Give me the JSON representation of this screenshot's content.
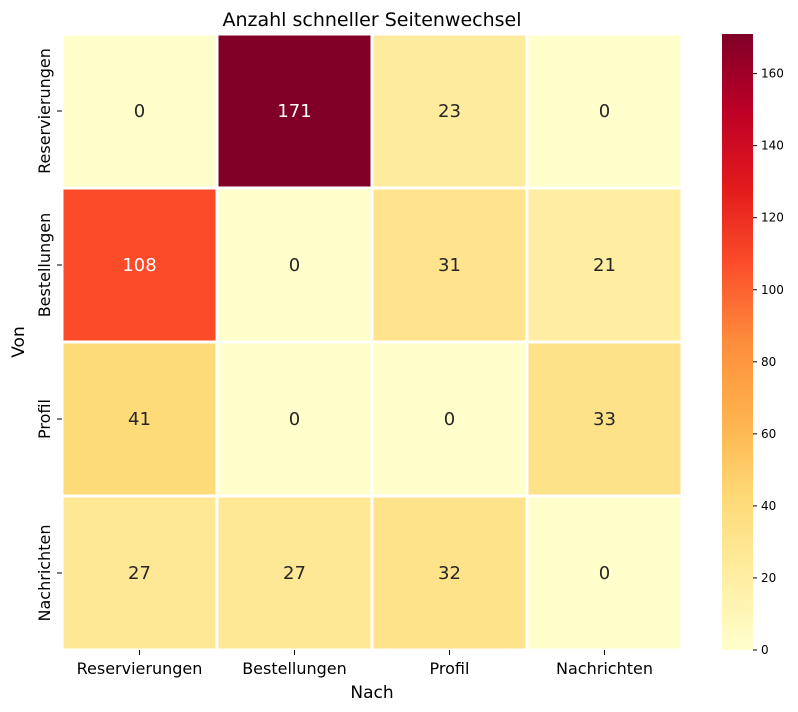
{
  "chart_data": {
    "type": "heatmap",
    "title": "Anzahl schneller Seitenwechsel",
    "xlabel": "Nach",
    "ylabel": "Von",
    "x_categories": [
      "Reservierungen",
      "Bestellungen",
      "Profil",
      "Nachrichten"
    ],
    "y_categories": [
      "Reservierungen",
      "Bestellungen",
      "Profil",
      "Nachrichten"
    ],
    "values": [
      [
        0,
        171,
        23,
        0
      ],
      [
        108,
        0,
        31,
        21
      ],
      [
        41,
        0,
        0,
        33
      ],
      [
        27,
        27,
        32,
        0
      ]
    ],
    "colorbar": {
      "min": 0,
      "max": 171,
      "ticks": [
        0,
        20,
        40,
        60,
        80,
        100,
        120,
        140,
        160
      ],
      "colormap": "YlOrRd"
    }
  }
}
